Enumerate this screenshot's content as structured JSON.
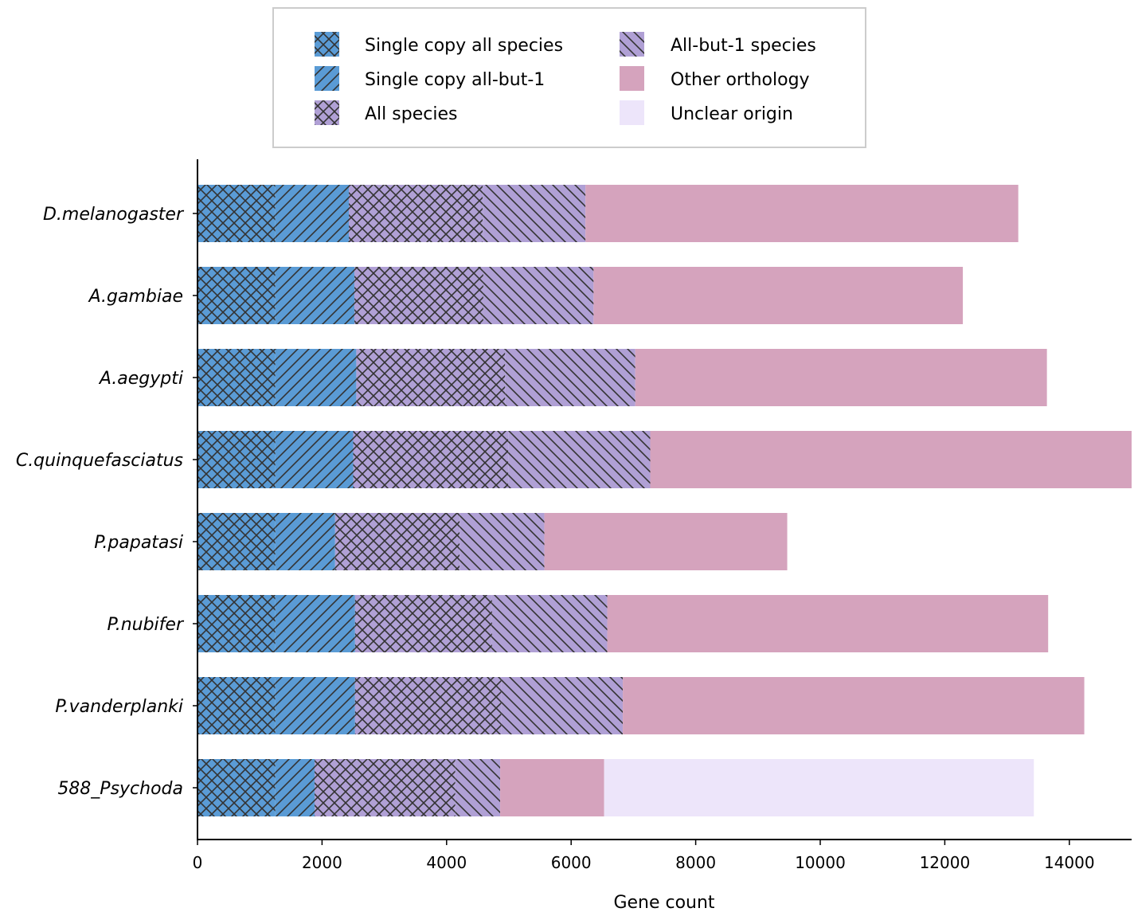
{
  "chart_data": {
    "type": "bar",
    "orientation": "horizontal",
    "stacked": true,
    "title": "",
    "xlabel": "Gene count",
    "ylabel": "",
    "xlim": [
      0,
      15000
    ],
    "xticks": [
      0,
      2000,
      4000,
      6000,
      8000,
      10000,
      12000,
      14000
    ],
    "grid": false,
    "legend_position": "top-center",
    "categories": [
      "D.melanogaster",
      "A.gambiae",
      "A.aegypti",
      "C.quinquefasciatus",
      "P.papatasi",
      "P.nubifer",
      "P.vanderplanki",
      "588_Psychoda"
    ],
    "series": [
      {
        "name": "Single copy all species",
        "color": "#5a9bd5",
        "hatch": "crosshatch",
        "values": [
          1250,
          1250,
          1250,
          1250,
          1250,
          1250,
          1250,
          1250
        ]
      },
      {
        "name": "Single copy all-but-1",
        "color": "#5a9bd5",
        "hatch": "diagonal",
        "values": [
          1180,
          1270,
          1300,
          1250,
          960,
          1280,
          1280,
          630
        ]
      },
      {
        "name": "All species",
        "color": "#b0a0d5",
        "hatch": "crosshatch",
        "values": [
          2150,
          2070,
          2390,
          2490,
          2000,
          2200,
          2350,
          2260
        ]
      },
      {
        "name": "All-but-1 species",
        "color": "#b0a0d5",
        "hatch": "backdiagonal",
        "values": [
          1650,
          1770,
          2090,
          2280,
          1360,
          1850,
          1950,
          720
        ]
      },
      {
        "name": "Other orthology",
        "color": "#d5a3bd",
        "hatch": "none",
        "values": [
          6950,
          5930,
          6610,
          7730,
          3900,
          7080,
          7410,
          1670
        ]
      },
      {
        "name": "Unclear origin",
        "color": "#ede5fa",
        "hatch": "none",
        "values": [
          0,
          0,
          0,
          0,
          0,
          0,
          0,
          6900
        ]
      }
    ]
  }
}
